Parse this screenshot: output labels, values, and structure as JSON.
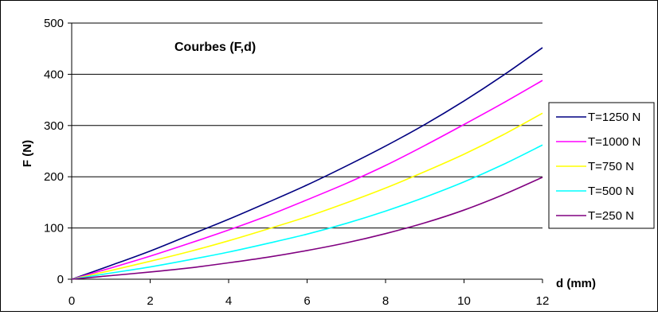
{
  "chart_data": {
    "type": "line",
    "title": "Courbes (F,d)",
    "xlabel": "d (mm)",
    "ylabel": "F (N)",
    "xlim": [
      0,
      12
    ],
    "ylim": [
      0,
      500
    ],
    "xticks": [
      0,
      2,
      4,
      6,
      8,
      10,
      12
    ],
    "yticks": [
      0,
      100,
      200,
      300,
      400,
      500
    ],
    "grid": "horizontal",
    "legend_position": "right",
    "x": [
      0,
      1,
      2,
      3,
      4,
      5,
      6,
      7,
      8,
      9,
      10,
      11,
      12
    ],
    "series": [
      {
        "name": "T=1250 N",
        "color": "#000080",
        "values": [
          0,
          27,
          55,
          86,
          117,
          150,
          184,
          221,
          260,
          302,
          348,
          398,
          452
        ]
      },
      {
        "name": "T=1000 N",
        "color": "#ff00ff",
        "values": [
          0,
          22,
          45,
          70,
          96,
          124,
          155,
          187,
          222,
          261,
          302,
          344,
          388
        ]
      },
      {
        "name": "T=750 N",
        "color": "#ffff00",
        "values": [
          0,
          17,
          35,
          54,
          75,
          98,
          122,
          149,
          178,
          210,
          244,
          282,
          324
        ]
      },
      {
        "name": "T=500 N",
        "color": "#00ffff",
        "values": [
          0,
          12,
          24,
          38,
          53,
          70,
          88,
          109,
          133,
          160,
          190,
          224,
          262
        ]
      },
      {
        "name": "T=250 N",
        "color": "#800080",
        "values": [
          0,
          7,
          14,
          22,
          32,
          43,
          56,
          71,
          89,
          110,
          135,
          165,
          199
        ]
      }
    ]
  }
}
